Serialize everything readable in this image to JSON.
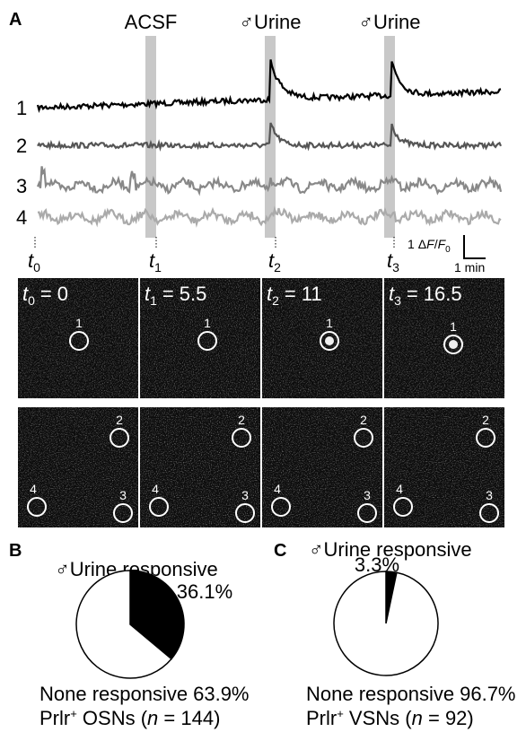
{
  "panel_a": {
    "label": "A",
    "stimuli": [
      "ACSF",
      "♂Urine",
      "♂Urine"
    ],
    "trace_labels": [
      "1",
      "2",
      "3",
      "4"
    ],
    "time_marks": [
      {
        "symbol": "t",
        "sub": "0"
      },
      {
        "symbol": "t",
        "sub": "1"
      },
      {
        "symbol": "t",
        "sub": "2"
      },
      {
        "symbol": "t",
        "sub": "3"
      }
    ],
    "scale_bar": {
      "amount": "1",
      "delta": "Δ",
      "f": "F",
      "slash": "/",
      "f0": "F",
      "f0_sub": "0",
      "time": "1 min"
    },
    "image_labels": [
      {
        "symbol": "t",
        "sub": "0",
        "eq": "=",
        "time": 0
      },
      {
        "symbol": "t",
        "sub": "1",
        "eq": "=",
        "time": 5.5
      },
      {
        "symbol": "t",
        "sub": "2",
        "eq": "=",
        "time": 11
      },
      {
        "symbol": "t",
        "sub": "3",
        "eq": "=",
        "time": 16.5
      }
    ],
    "roi_top": [
      "1"
    ],
    "roi_bottom": [
      "2",
      "3",
      "4"
    ]
  },
  "chart_data": [
    {
      "type": "pie",
      "panel": "B",
      "title": "♂Urine responsive",
      "categories": [
        "♂Urine responsive",
        "None responsive"
      ],
      "values": [
        36.1,
        63.9
      ],
      "value_labels": [
        "36.1%",
        "63.9%"
      ],
      "colors": [
        "#000000",
        "#ffffff"
      ],
      "caption": {
        "parts": [
          "Prlr",
          "+",
          " OSNs (",
          "n",
          " = ",
          ")"
        ],
        "n": 144
      }
    },
    {
      "type": "pie",
      "panel": "C",
      "title": "♂Urine responsive",
      "categories": [
        "♂Urine responsive",
        "None responsive"
      ],
      "values": [
        3.3,
        96.7
      ],
      "value_labels": [
        "3.3%",
        "96.7%"
      ],
      "colors": [
        "#000000",
        "#ffffff"
      ],
      "caption": {
        "parts": [
          "Prlr",
          "+",
          " VSNs (",
          "n",
          " = ",
          ")"
        ],
        "n": 92
      }
    }
  ]
}
